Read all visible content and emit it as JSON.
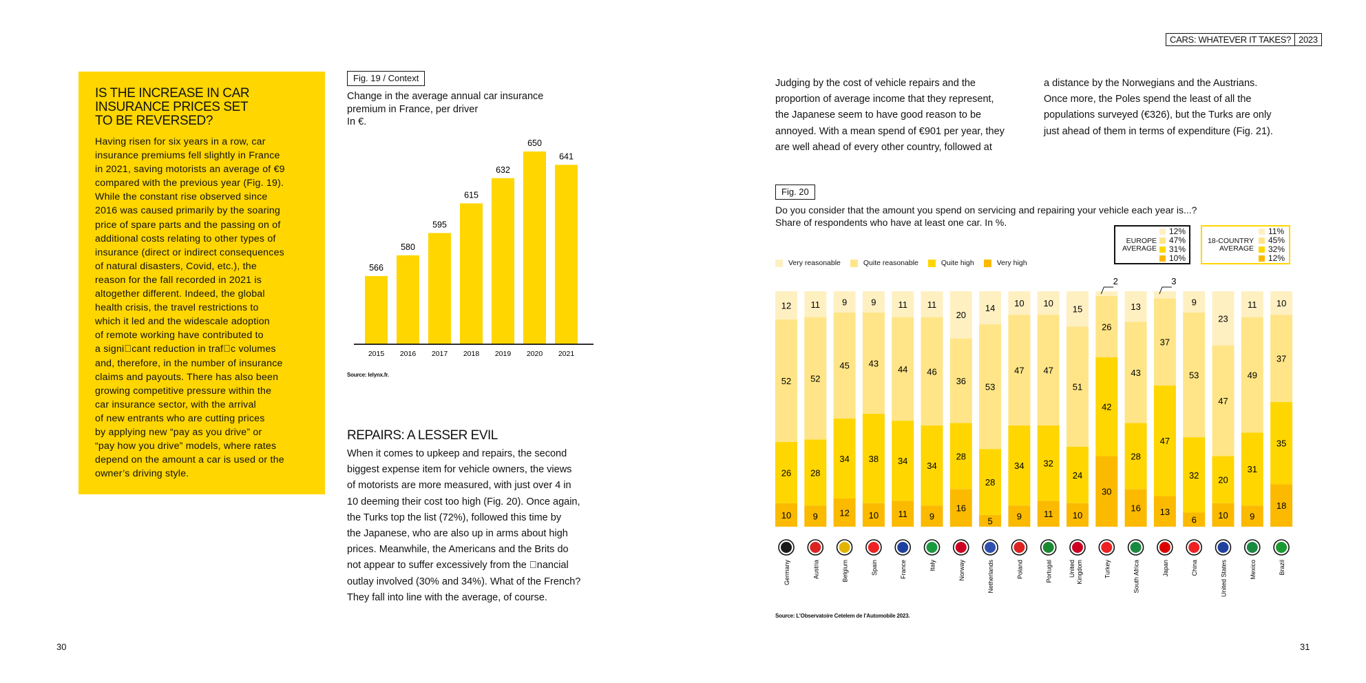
{
  "header": {
    "tag_title": "CARS: WHATEVER IT TAKES?",
    "tag_year": "2023"
  },
  "sidebar": {
    "title_lines": [
      "IS THE INCREASE IN CAR",
      "INSURANCE PRICES SET",
      "TO BE REVERSED?"
    ],
    "body_lines": [
      "Having risen for six years in a row, car",
      "insurance premiums fell slightly in France",
      "in 2021, saving motorists an average of €9",
      "compared with the previous year (Fig. 19).",
      "While the constant rise observed since",
      "2016 was caused primarily by the soaring",
      "price of spare parts and the passing on of",
      "additional costs relating to other types of",
      "insurance (direct or indirect consequences",
      "of natural disasters, Covid, etc.), the",
      "reason for the fall recorded in 2021 is",
      "altogether different. Indeed, the global",
      "health crisis, the travel restrictions to",
      "which it led and the widescale adoption",
      "of remote working have contributed to",
      "a signi\u0000cant reduction in traf\u0000c volumes",
      "and, therefore, in the number of insurance",
      "claims and payouts. There has also been",
      "growing competitive pressure within the",
      "car insurance sector, with the arrival",
      "of new entrants who are cutting prices",
      "by applying new “pay as you drive” or",
      "“pay how you drive” models, where rates",
      "depend on the amount a car is used or the",
      "owner’s driving style."
    ]
  },
  "fig19": {
    "tag": "Fig. 19 / Context",
    "caption_lines": [
      "Change in the average annual car insurance",
      "premium in France, per driver",
      "In €."
    ],
    "source": "Source: lelynx.fr.",
    "color": "#FFD600"
  },
  "repairs": {
    "title": "REPAIRS: A LESSER EVIL",
    "body_lines": [
      "When it comes to upkeep and repairs, the second",
      "biggest expense item for vehicle owners, the views",
      "of motorists are more measured, with just over 4 in",
      "10 deeming their cost too high (Fig. 20). Once again,",
      "the Turks top the list (72%), followed this time by",
      "the Japanese, who are also up in arms about high",
      "prices. Meanwhile, the Americans and the Brits do",
      "not appear to suffer excessively from the \u0000nancial",
      "outlay involved (30% and 34%). What of the French?",
      "They fall into line with the average, of course."
    ]
  },
  "intro": {
    "col1_lines": [
      "Judging by the cost of vehicle repairs and the",
      "proportion of average income that they represent,",
      "the Japanese seem to have good reason to be",
      "annoyed. With a mean spend of €901 per year, they",
      "are well ahead of every other country, followed at"
    ],
    "col2_lines": [
      "a distance by the Norwegians and the Austrians.",
      "Once more, the Poles spend the least of all the",
      "populations surveyed (€326), but the Turks are only",
      "just ahead of them in terms of expenditure (Fig. 21)."
    ]
  },
  "fig20": {
    "tag": "Fig. 20",
    "caption_lines": [
      "Do you consider that the amount you spend on servicing and repairing your vehicle each year is...?",
      "Share of respondents who have at least one car. In %."
    ],
    "source": "Source: L’Observatoire Cetelem de l’Automobile 2023.",
    "europe_label_lines": [
      "EUROPE",
      "AVERAGE"
    ],
    "europe_values": [
      "12%",
      "47%",
      "31%",
      "10%"
    ],
    "country18_label_lines": [
      "18-COUNTRY",
      "AVERAGE"
    ],
    "country18_values": [
      "11%",
      "45%",
      "32%",
      "12%"
    ]
  },
  "page_numbers": {
    "left": "30",
    "right": "31"
  },
  "chart_data": [
    {
      "type": "bar",
      "categories": [
        "2015",
        "2016",
        "2017",
        "2018",
        "2019",
        "2020",
        "2021"
      ],
      "values": [
        566,
        580,
        595,
        615,
        632,
        650,
        641
      ],
      "title": "Change in the average annual car insurance premium in France, per driver",
      "ylabel": "In €."
    },
    {
      "type": "bar",
      "stacked": true,
      "categories": [
        "Germany",
        "Austria",
        "Belgium",
        "Spain",
        "France",
        "Italy",
        "Norway",
        "Netherlands",
        "Poland",
        "Portugal",
        "United Kingdom",
        "Turkey",
        "South Africa",
        "Japan",
        "China",
        "United States",
        "Mexico",
        "Brazil"
      ],
      "series": [
        {
          "name": "Very reasonable",
          "color": "#FFF0C2",
          "values": [
            12,
            11,
            9,
            9,
            11,
            11,
            20,
            14,
            10,
            10,
            15,
            2,
            13,
            3,
            9,
            23,
            11,
            10
          ]
        },
        {
          "name": "Quite reasonable",
          "color": "#FFE587",
          "values": [
            52,
            52,
            45,
            43,
            44,
            46,
            36,
            53,
            47,
            47,
            51,
            26,
            43,
            37,
            53,
            47,
            49,
            37
          ]
        },
        {
          "name": "Quite high",
          "color": "#FFD600",
          "values": [
            26,
            28,
            34,
            38,
            34,
            34,
            28,
            28,
            34,
            32,
            24,
            42,
            28,
            47,
            32,
            20,
            31,
            35
          ]
        },
        {
          "name": "Very high",
          "color": "#FBBA00",
          "values": [
            10,
            9,
            12,
            10,
            11,
            9,
            16,
            5,
            9,
            11,
            10,
            30,
            16,
            13,
            6,
            10,
            9,
            18
          ]
        }
      ]
    }
  ]
}
